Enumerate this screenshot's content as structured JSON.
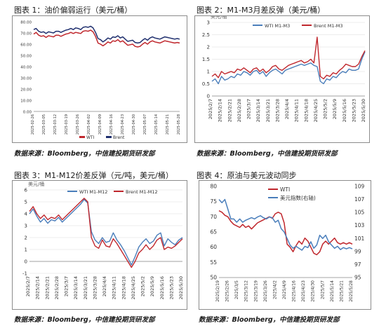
{
  "captions": [
    "图表 1：油价偏弱运行（美元/桶）",
    "图表 2：M1-M3月差反弹（美元/桶）",
    "图表 3：M1-M12价差反弹（元/吨，美元/桶）",
    "图表 4：原油与美元波动同步"
  ],
  "sources": [
    "数据来源：Bloomberg，中信建投期货研发部",
    "数据来源：Bloomberg，中信建投期货研发部",
    "数据来源：Bloomberg，中信建投期货研发部",
    "数据来源：Bloomberg，中信建投期货研发部"
  ],
  "colors": {
    "red": "#c0272d",
    "blue": "#4a7ebb",
    "navy": "#1f2f6e"
  },
  "chart_data": [
    {
      "type": "line",
      "ylim": [
        0,
        80
      ],
      "yticks": [
        "0.00",
        "10.00",
        "20.00",
        "30.00",
        "40.00",
        "50.00",
        "60.00",
        "70.00",
        "80.00"
      ],
      "xlabels": [
        "2025-02-26",
        "2025-03-05",
        "2025-03-12",
        "2025-03-19",
        "2025-03-26",
        "2025-04-02",
        "2025-04-09",
        "2025-04-16",
        "2025-04-23",
        "2025-04-30",
        "2025-05-07",
        "2025-05-14",
        "2025-05-21",
        "2025-05-28"
      ],
      "legend_position": "bottom",
      "series": [
        {
          "name": "WTI",
          "color": "#c0272d",
          "values": [
            69,
            70.5,
            68,
            67,
            67.5,
            66,
            67.5,
            67,
            66.5,
            68,
            68,
            67,
            68,
            69,
            69.5,
            70.5,
            69.5,
            70.5,
            70,
            69.5,
            71.5,
            72,
            71.5,
            72.5,
            71,
            67,
            61,
            60,
            58.5,
            60,
            62,
            61,
            63,
            62.5,
            64,
            62,
            63,
            61,
            59,
            59.5,
            60,
            58,
            57.5,
            58,
            60,
            61.5,
            60,
            62,
            63,
            62,
            61.5,
            61,
            62,
            63,
            62.5,
            62,
            61.5,
            61,
            61.5,
            61
          ]
        },
        {
          "name": "Brent",
          "color": "#1f2f6e",
          "values": [
            73,
            74,
            71.5,
            70.5,
            71,
            69.5,
            71,
            70.5,
            70,
            71.5,
            71.5,
            70.5,
            71.5,
            72.5,
            73,
            74,
            73,
            74.5,
            74,
            73,
            75,
            75.5,
            75,
            76,
            74.5,
            70.5,
            65,
            64,
            62,
            63.5,
            65.5,
            64.5,
            66.5,
            66,
            67.5,
            65.5,
            66.5,
            64.5,
            62.5,
            63,
            63.5,
            61.5,
            61,
            61.5,
            63.5,
            65,
            63.5,
            65.5,
            66.5,
            65.5,
            65,
            64.5,
            65.5,
            66.5,
            66,
            65.5,
            65,
            64.5,
            65,
            64.5
          ]
        }
      ]
    },
    {
      "type": "line",
      "ylim": [
        0,
        3
      ],
      "yticks": [
        "0",
        "0.5",
        "1",
        "1.5",
        "2",
        "2.5",
        "3"
      ],
      "yunit": "美元/桶",
      "xlabels": [
        "2025/2/7",
        "2025/2/14",
        "2025/2/21",
        "2025/2/28",
        "2025/3/7",
        "2025/3/14",
        "2025/3/21",
        "2025/3/28",
        "2025/4/4",
        "2025/4/11",
        "2025/4/18",
        "2025/4/25",
        "2025/5/2",
        "2025/5/9",
        "2025/5/16",
        "2025/5/23",
        "2025/5/30"
      ],
      "legend_position": "top",
      "series": [
        {
          "name": "WTI M1-M3",
          "color": "#4a7ebb",
          "values": [
            0.6,
            0.7,
            0.5,
            0.8,
            0.65,
            0.7,
            0.8,
            0.75,
            0.9,
            0.85,
            1.0,
            0.95,
            0.85,
            1.0,
            1.05,
            0.9,
            1.0,
            0.8,
            0.95,
            1.05,
            1.1,
            1.0,
            0.9,
            1.05,
            1.1,
            1.15,
            1.2,
            1.25,
            1.3,
            1.25,
            1.3,
            1.35,
            1.25,
            1.2,
            0.6,
            0.5,
            0.7,
            0.65,
            0.8,
            0.75,
            0.9,
            1.0,
            0.95,
            1.1,
            1.05,
            1.05,
            1.1,
            1.5,
            1.8
          ]
        },
        {
          "name": "Brent M1-M3",
          "color": "#c0272d",
          "values": [
            0.8,
            0.9,
            0.75,
            1.0,
            0.9,
            0.95,
            1.0,
            0.95,
            1.1,
            1.05,
            1.15,
            1.05,
            0.95,
            1.1,
            1.15,
            1.0,
            1.1,
            0.95,
            1.05,
            1.2,
            1.25,
            1.1,
            1.05,
            1.15,
            1.25,
            1.3,
            1.35,
            1.4,
            1.45,
            1.35,
            1.4,
            1.5,
            1.35,
            2.4,
            0.8,
            0.7,
            0.85,
            0.8,
            0.95,
            0.9,
            1.05,
            1.15,
            1.3,
            1.25,
            1.2,
            1.2,
            1.3,
            1.6,
            1.85
          ]
        }
      ]
    },
    {
      "type": "line",
      "ylim": [
        -1,
        6
      ],
      "yticks": [
        "-1",
        "0",
        "1",
        "2",
        "3",
        "4",
        "5",
        "6"
      ],
      "yunit": "美元/桶",
      "xlabels": [
        "2025/2/7",
        "2025/2/14",
        "2025/2/21",
        "2025/2/28",
        "2025/3/7",
        "2025/3/14",
        "2025/3/21",
        "2025/3/28",
        "2025/4/4",
        "2025/4/11",
        "2025/4/18",
        "2025/4/25",
        "2025/5/2",
        "2025/5/9",
        "2025/5/16",
        "2025/5/23",
        "2025/5/30"
      ],
      "legend_position": "top",
      "series": [
        {
          "name": "WTI M1-M12",
          "color": "#4a7ebb",
          "values": [
            4.0,
            4.4,
            3.8,
            3.3,
            3.6,
            3.2,
            3.5,
            3.4,
            3.7,
            3.3,
            3.6,
            3.9,
            4.2,
            4.5,
            4.8,
            5.2,
            4.9,
            2.5,
            1.8,
            1.5,
            2.0,
            1.6,
            1.7,
            2.4,
            1.8,
            1.4,
            0.9,
            0.3,
            -0.3,
            0.4,
            1.2,
            1.6,
            1.9,
            1.5,
            1.7,
            2.2,
            2.4,
            1.3,
            1.9,
            1.6,
            1.4,
            1.8,
            2.0
          ]
        },
        {
          "name": "Brent M1-M12",
          "color": "#c0272d",
          "values": [
            4.2,
            4.6,
            4.0,
            3.6,
            3.9,
            3.5,
            3.7,
            3.6,
            3.9,
            3.5,
            3.8,
            4.1,
            4.4,
            4.7,
            5.0,
            5.3,
            5.0,
            2.0,
            1.3,
            1.1,
            1.8,
            1.3,
            1.2,
            1.9,
            1.5,
            1.0,
            0.5,
            0.0,
            -0.5,
            0.0,
            0.7,
            1.0,
            1.4,
            1.0,
            1.3,
            1.8,
            2.0,
            1.0,
            1.2,
            1.1,
            1.3,
            1.6,
            1.9
          ]
        }
      ]
    },
    {
      "type": "line",
      "ylim": [
        50,
        80
      ],
      "yticks": [
        "50",
        "55",
        "60",
        "65",
        "70",
        "75",
        "80"
      ],
      "y2lim": [
        95,
        109
      ],
      "y2ticks": [
        "95",
        "97",
        "99",
        "101",
        "103",
        "105",
        "107",
        "109"
      ],
      "xlabels": [
        "2025/2/19",
        "2025/2/26",
        "2025/3/5",
        "2025/3/12",
        "2025/3/19",
        "2025/3/26",
        "2025/4/2",
        "2025/4/9",
        "2025/4/16",
        "2025/4/23",
        "2025/4/30",
        "2025/5/7",
        "2025/5/14",
        "2025/5/21",
        "2025/5/28"
      ],
      "legend_position": "top-left",
      "series": [
        {
          "name": "WTI",
          "color": "#c0272d",
          "axis": "left",
          "values": [
            72,
            71.5,
            70.5,
            70,
            68.5,
            67.5,
            67,
            66.5,
            67.5,
            66.5,
            67,
            66,
            67,
            68,
            68.5,
            69,
            69.5,
            70,
            69.5,
            71,
            71.5,
            71,
            68,
            61,
            60,
            58.5,
            60.5,
            62,
            61,
            63,
            62,
            60,
            58,
            57.5,
            58.5,
            61,
            62,
            61,
            62,
            63,
            61.5,
            61,
            61.5,
            61,
            61.5,
            61
          ]
        },
        {
          "name": "美元指数(右轴)",
          "color": "#4a7ebb",
          "axis": "right",
          "values": [
            107,
            106.5,
            107,
            105.5,
            104,
            104,
            103.5,
            104,
            103.5,
            103.8,
            104,
            104.2,
            104,
            104.3,
            104.5,
            104.2,
            104,
            104.3,
            104.2,
            103.5,
            103.8,
            102.5,
            102,
            101,
            100,
            99.5,
            99.8,
            99.5,
            99.2,
            99.8,
            99.6,
            100.5,
            99.5,
            100,
            101.5,
            101,
            101.5,
            100.5,
            100,
            99.5,
            99.8,
            99.3,
            99.6,
            99.4,
            99.6,
            99.4
          ]
        }
      ]
    }
  ]
}
